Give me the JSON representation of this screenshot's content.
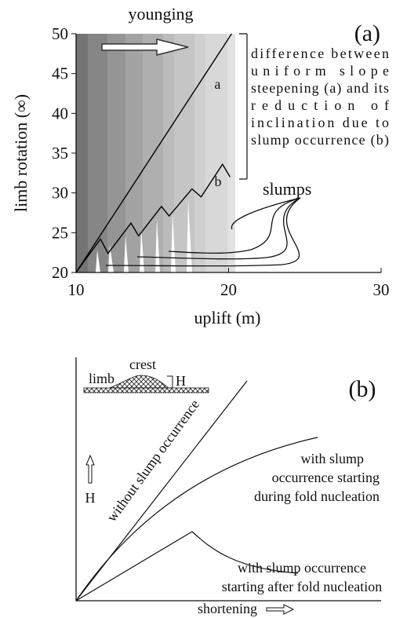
{
  "chart_data": {
    "type": "line",
    "panel_label": "(a)",
    "arrow_label": "younging",
    "bracket_note": [
      "difference between",
      "uniform slope",
      "steepening (a) and its",
      "reduction of",
      "inclination due to",
      "slump occurrence (b)"
    ],
    "slumps_label": "slumps",
    "xlabel": "uplift (m)",
    "ylabel": "limb rotation (∞)",
    "xlim": [
      10,
      30
    ],
    "ylim": [
      20,
      50
    ],
    "xticks": [
      10,
      20,
      30
    ],
    "yticks": [
      20,
      25,
      30,
      35,
      40,
      45,
      50
    ],
    "series": [
      {
        "name": "a",
        "color": "#000000",
        "x": [
          10,
          20.2
        ],
        "values": [
          20,
          50
        ]
      },
      {
        "name": "b",
        "color": "#000000",
        "x": [
          10,
          11.6,
          12.1,
          13.6,
          14.1,
          15.6,
          16.1,
          17.6,
          18.2,
          19.6,
          20.1
        ],
        "values": [
          20,
          24.2,
          22.4,
          26.2,
          24.6,
          28.3,
          27.1,
          30.5,
          29.5,
          33.6,
          32
        ]
      }
    ]
  },
  "diagram": {
    "panel_label": "(b)",
    "inset": {
      "limb": "limb",
      "crest": "crest",
      "height": "H"
    },
    "y_axis_label": "H",
    "x_axis_label": "shortening",
    "curves": [
      {
        "label": [
          "without slump occurrence"
        ]
      },
      {
        "label": [
          "with slump",
          "occurrence starting",
          "during fold nucleation"
        ]
      },
      {
        "label": [
          "with slump occurrence",
          "starting after fold nucleation"
        ]
      }
    ]
  }
}
